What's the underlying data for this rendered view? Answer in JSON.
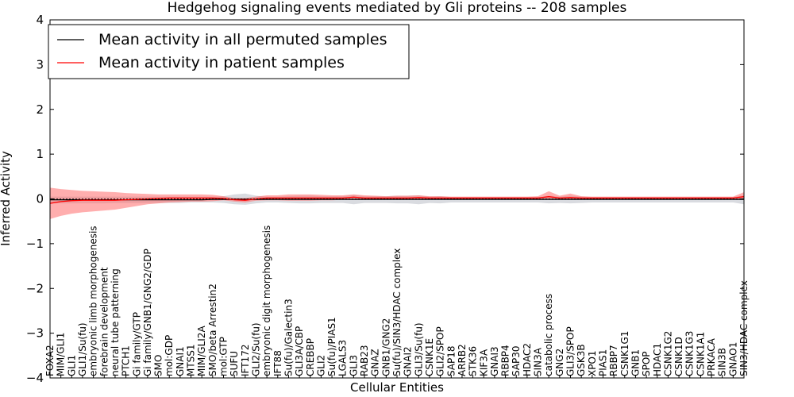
{
  "chart_data": {
    "type": "line",
    "title": "Hedgehog signaling events mediated by Gli proteins -- 208 samples",
    "xlabel": "Cellular Entities",
    "ylabel": "Inferred Activity",
    "ylim": [
      -4,
      4
    ],
    "yticks": [
      -4,
      -3,
      -2,
      -1,
      0,
      1,
      2,
      3,
      4
    ],
    "ytick_labels": [
      "−4",
      "−3",
      "−2",
      "−1",
      "0",
      "1",
      "2",
      "3",
      "4"
    ],
    "legend_position": "top-left",
    "categories": [
      "FOXA2",
      "MIM/GLI1",
      "GLI1",
      "GLI1/Su(fu)",
      "embryonic limb morphogenesis",
      "forebrain development",
      "neural tube patterning",
      "PTCH1",
      "Gi family/GTP",
      "Gi family/GNB1/GNG2/GDP",
      "SMO",
      "mol:GDP",
      "GNAI1",
      "MTSS1",
      "MIM/GLI2A",
      "SMO/beta Arrestin2",
      "mol:GTP",
      "SUFU",
      "IFT172",
      "GLI2/Su(fu)",
      "embryonic digit morphogenesis",
      "IFT88",
      "Su(fu)/Galectin3",
      "GLI3A/CBP",
      "CREBBP",
      "GLI2",
      "Su(fu)/PIAS1",
      "LGALS3",
      "GLI3",
      "RAB23",
      "GNAZ",
      "GNB1/GNG2",
      "Su(fu)/SIN3/HDAC complex",
      "GNAI2",
      "GLI3/Su(fu)",
      "CSNK1E",
      "GLI2/SPOP",
      "SAP18",
      "ARRB2",
      "STK36",
      "KIF3A",
      "GNAI3",
      "RBBP4",
      "SAP30",
      "HDAC2",
      "SIN3A",
      "catabolic process",
      "GNG2",
      "GLI3/SPOP",
      "GSK3B",
      "XPO1",
      "PIAS1",
      "RBBP7",
      "CSNK1G1",
      "GNB1",
      "SPOP",
      "HDAC1",
      "CSNK1G2",
      "CSNK1D",
      "CSNK1G3",
      "CSNK1A1",
      "PRKACA",
      "SIN3B",
      "GNAO1",
      "SIN3/HDAC complex"
    ],
    "series": [
      {
        "name": "Mean activity in all permuted samples",
        "color": "#000000",
        "values": [
          -0.02,
          -0.02,
          -0.02,
          -0.02,
          -0.02,
          -0.02,
          -0.02,
          -0.02,
          -0.02,
          -0.02,
          -0.02,
          -0.02,
          -0.02,
          -0.02,
          -0.02,
          -0.01,
          -0.01,
          -0.01,
          -0.01,
          -0.01,
          -0.01,
          -0.01,
          -0.01,
          -0.01,
          -0.01,
          -0.01,
          -0.01,
          -0.01,
          -0.01,
          -0.01,
          -0.01,
          -0.01,
          -0.01,
          -0.01,
          -0.01,
          -0.01,
          -0.01,
          -0.01,
          -0.01,
          -0.01,
          -0.01,
          -0.01,
          -0.01,
          -0.01,
          -0.01,
          -0.01,
          -0.01,
          -0.01,
          -0.01,
          -0.01,
          -0.01,
          -0.01,
          -0.01,
          -0.01,
          -0.01,
          -0.01,
          -0.01,
          -0.01,
          -0.01,
          -0.01,
          -0.01,
          -0.01,
          -0.01,
          -0.01,
          -0.01
        ],
        "band_low": [
          -0.1,
          -0.1,
          -0.1,
          -0.1,
          -0.1,
          -0.1,
          -0.09,
          -0.09,
          -0.09,
          -0.09,
          -0.09,
          -0.09,
          -0.09,
          -0.08,
          -0.08,
          -0.08,
          -0.09,
          -0.12,
          -0.13,
          -0.1,
          -0.08,
          -0.08,
          -0.09,
          -0.1,
          -0.1,
          -0.09,
          -0.09,
          -0.09,
          -0.12,
          -0.09,
          -0.09,
          -0.09,
          -0.1,
          -0.1,
          -0.12,
          -0.09,
          -0.1,
          -0.08,
          -0.08,
          -0.08,
          -0.08,
          -0.08,
          -0.08,
          -0.08,
          -0.08,
          -0.08,
          -0.1,
          -0.09,
          -0.1,
          -0.09,
          -0.08,
          -0.08,
          -0.08,
          -0.08,
          -0.08,
          -0.08,
          -0.08,
          -0.08,
          -0.08,
          -0.08,
          -0.08,
          -0.08,
          -0.08,
          -0.08,
          -0.12
        ],
        "band_high": [
          0.05,
          0.05,
          0.05,
          0.05,
          0.05,
          0.05,
          0.05,
          0.05,
          0.05,
          0.05,
          0.05,
          0.05,
          0.05,
          0.05,
          0.05,
          0.05,
          0.06,
          0.1,
          0.12,
          0.07,
          0.05,
          0.05,
          0.06,
          0.07,
          0.07,
          0.06,
          0.06,
          0.06,
          0.09,
          0.06,
          0.06,
          0.06,
          0.07,
          0.07,
          0.08,
          0.05,
          0.06,
          0.04,
          0.04,
          0.04,
          0.04,
          0.04,
          0.04,
          0.04,
          0.04,
          0.04,
          0.07,
          0.05,
          0.07,
          0.05,
          0.04,
          0.04,
          0.04,
          0.04,
          0.04,
          0.04,
          0.04,
          0.04,
          0.04,
          0.04,
          0.04,
          0.04,
          0.04,
          0.04,
          0.08
        ]
      },
      {
        "name": "Mean activity in patient samples",
        "color": "#ff0000",
        "values": [
          -0.1,
          -0.06,
          -0.04,
          -0.03,
          -0.03,
          -0.03,
          -0.03,
          -0.02,
          -0.01,
          0,
          0.01,
          0.02,
          0.02,
          0.02,
          0.02,
          0.02,
          0.01,
          -0.02,
          -0.03,
          0,
          0.02,
          0.02,
          0.02,
          0.02,
          0.02,
          0.02,
          0.02,
          0.02,
          0.04,
          0.02,
          0.02,
          0.02,
          0.02,
          0.02,
          0.03,
          0.02,
          0.02,
          0.02,
          0.02,
          0.02,
          0.02,
          0.02,
          0.02,
          0.02,
          0.02,
          0.02,
          0.05,
          0.02,
          0.03,
          0.02,
          0.02,
          0.02,
          0.02,
          0.02,
          0.02,
          0.02,
          0.02,
          0.02,
          0.02,
          0.02,
          0.02,
          0.02,
          0.02,
          0.02,
          0.05
        ],
        "band_low": [
          -0.45,
          -0.38,
          -0.33,
          -0.3,
          -0.28,
          -0.26,
          -0.24,
          -0.2,
          -0.16,
          -0.12,
          -0.1,
          -0.08,
          -0.07,
          -0.06,
          -0.06,
          -0.05,
          -0.03,
          -0.06,
          -0.08,
          -0.04,
          -0.03,
          -0.03,
          -0.04,
          -0.04,
          -0.04,
          -0.03,
          -0.03,
          -0.02,
          -0.02,
          -0.02,
          -0.02,
          -0.01,
          -0.02,
          -0.02,
          -0.01,
          -0.01,
          -0.01,
          0,
          0,
          0,
          0,
          0,
          0,
          0,
          0,
          0,
          -0.01,
          0,
          -0.01,
          0,
          0,
          0,
          0,
          0,
          0,
          0,
          0,
          0,
          0,
          0,
          0,
          0,
          0,
          0,
          -0.01
        ],
        "band_high": [
          0.25,
          0.22,
          0.2,
          0.18,
          0.17,
          0.16,
          0.15,
          0.13,
          0.12,
          0.11,
          0.1,
          0.1,
          0.1,
          0.1,
          0.1,
          0.09,
          0.06,
          0.02,
          0.02,
          0.05,
          0.08,
          0.08,
          0.1,
          0.1,
          0.1,
          0.09,
          0.08,
          0.08,
          0.1,
          0.08,
          0.07,
          0.06,
          0.07,
          0.07,
          0.08,
          0.06,
          0.06,
          0.05,
          0.05,
          0.05,
          0.05,
          0.05,
          0.05,
          0.05,
          0.05,
          0.06,
          0.17,
          0.07,
          0.12,
          0.06,
          0.05,
          0.05,
          0.05,
          0.05,
          0.05,
          0.05,
          0.05,
          0.05,
          0.05,
          0.05,
          0.05,
          0.05,
          0.05,
          0.05,
          0.15
        ]
      }
    ]
  }
}
